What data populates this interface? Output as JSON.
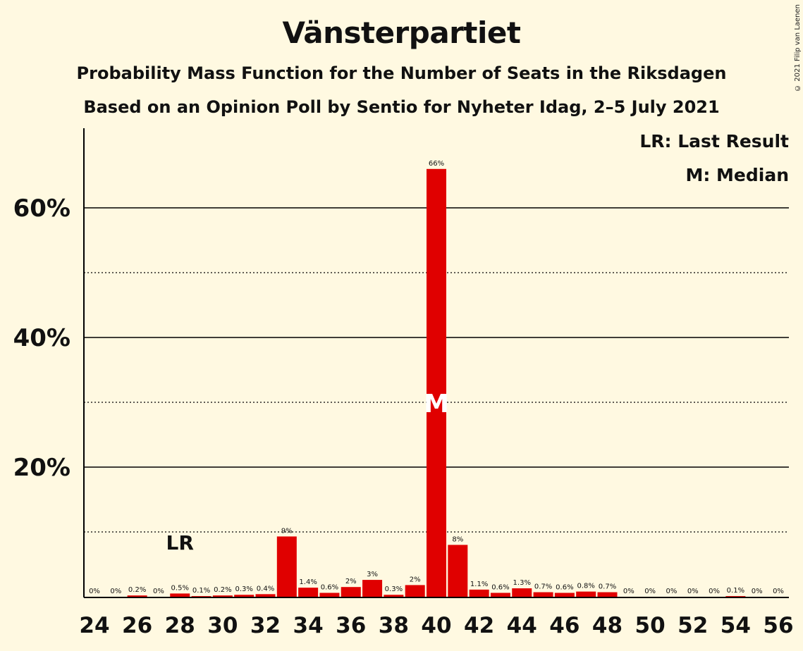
{
  "title": "Vänsterpartiet",
  "subtitle_line1": "Probability Mass Function for the Number of Seats in the Riksdagen",
  "subtitle_line2": "Based on an Opinion Poll by Sentio for Nyheter Idag, 2–5 July 2021",
  "copyright": "© 2021 Filip van Laenen",
  "legend": {
    "last_result": "LR: Last Result",
    "median": "M: Median"
  },
  "markers": {
    "last_result_label": "LR",
    "last_result_seat": 28,
    "median_label": "M",
    "median_seat": 40
  },
  "colors": {
    "bar": "#E00000",
    "background": "#FFF9E1",
    "axis": "#000000"
  },
  "chart_data": {
    "type": "bar",
    "x": [
      24,
      25,
      26,
      27,
      28,
      29,
      30,
      31,
      32,
      33,
      34,
      35,
      36,
      37,
      38,
      39,
      40,
      41,
      42,
      43,
      44,
      45,
      46,
      47,
      48,
      49,
      50,
      51,
      52,
      53,
      54,
      55,
      56
    ],
    "values": [
      0,
      0,
      0.2,
      0,
      0.5,
      0.1,
      0.2,
      0.3,
      0.4,
      9.3,
      1.4,
      0.6,
      1.5,
      2.6,
      0.3,
      1.8,
      66,
      8,
      1.1,
      0.6,
      1.3,
      0.7,
      0.6,
      0.8,
      0.7,
      0,
      0,
      0,
      0,
      0,
      0.1,
      0,
      0
    ],
    "data_labels": [
      "0%",
      "0%",
      "0.2%",
      "0%",
      "0.5%",
      "0.1%",
      "0.2%",
      "0.3%",
      "0.4%",
      "9%",
      "1.4%",
      "0.6%",
      "2%",
      "3%",
      "0.3%",
      "2%",
      "66%",
      "8%",
      "1.1%",
      "0.6%",
      "1.3%",
      "0.7%",
      "0.6%",
      "0.8%",
      "0.7%",
      "0%",
      "0%",
      "0%",
      "0%",
      "0%",
      "0.1%",
      "0%",
      "0%"
    ],
    "x_tick_labels": [
      "24",
      "26",
      "28",
      "30",
      "32",
      "34",
      "36",
      "38",
      "40",
      "42",
      "44",
      "46",
      "48",
      "50",
      "52",
      "54",
      "56"
    ],
    "y_tick_labels": [
      "20%",
      "40%",
      "60%"
    ],
    "y_ticks_major": [
      20,
      40,
      60
    ],
    "y_ticks_minor": [
      10,
      30,
      50
    ],
    "ylim": [
      0,
      72
    ],
    "xlim": [
      23.5,
      56.5
    ],
    "grid": true,
    "legend_placement": "top-right"
  }
}
